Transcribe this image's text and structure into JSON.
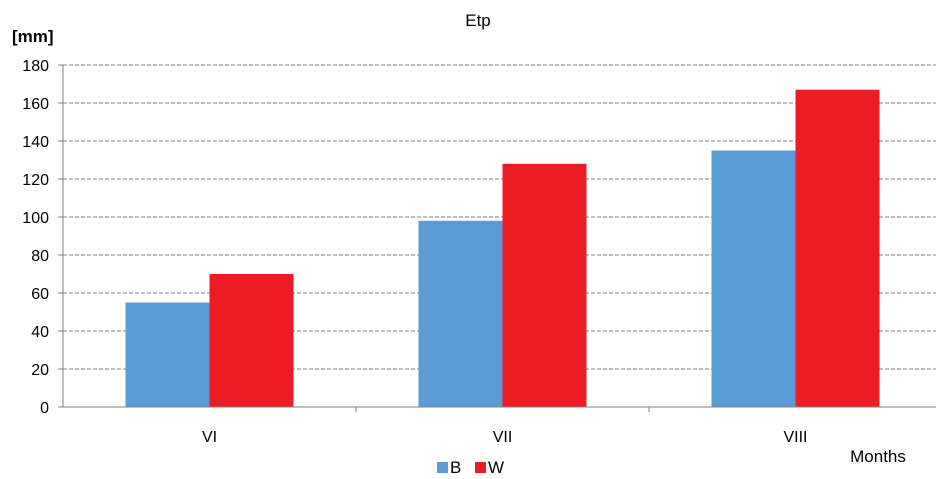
{
  "chart_data": {
    "type": "bar",
    "title": "Etp",
    "ylabel": "[mm]",
    "xlabel": "Months",
    "categories": [
      "VI",
      "VII",
      "VIII"
    ],
    "series": [
      {
        "name": "B",
        "color": "#5b9bd5",
        "values": [
          55,
          98,
          135
        ]
      },
      {
        "name": "W",
        "color": "#ed1c24",
        "values": [
          70,
          128,
          167
        ]
      }
    ],
    "ylim": [
      0,
      180
    ],
    "yticks": [
      0,
      20,
      40,
      60,
      80,
      100,
      120,
      140,
      160,
      180
    ],
    "grid": true,
    "legend": "bottom"
  }
}
